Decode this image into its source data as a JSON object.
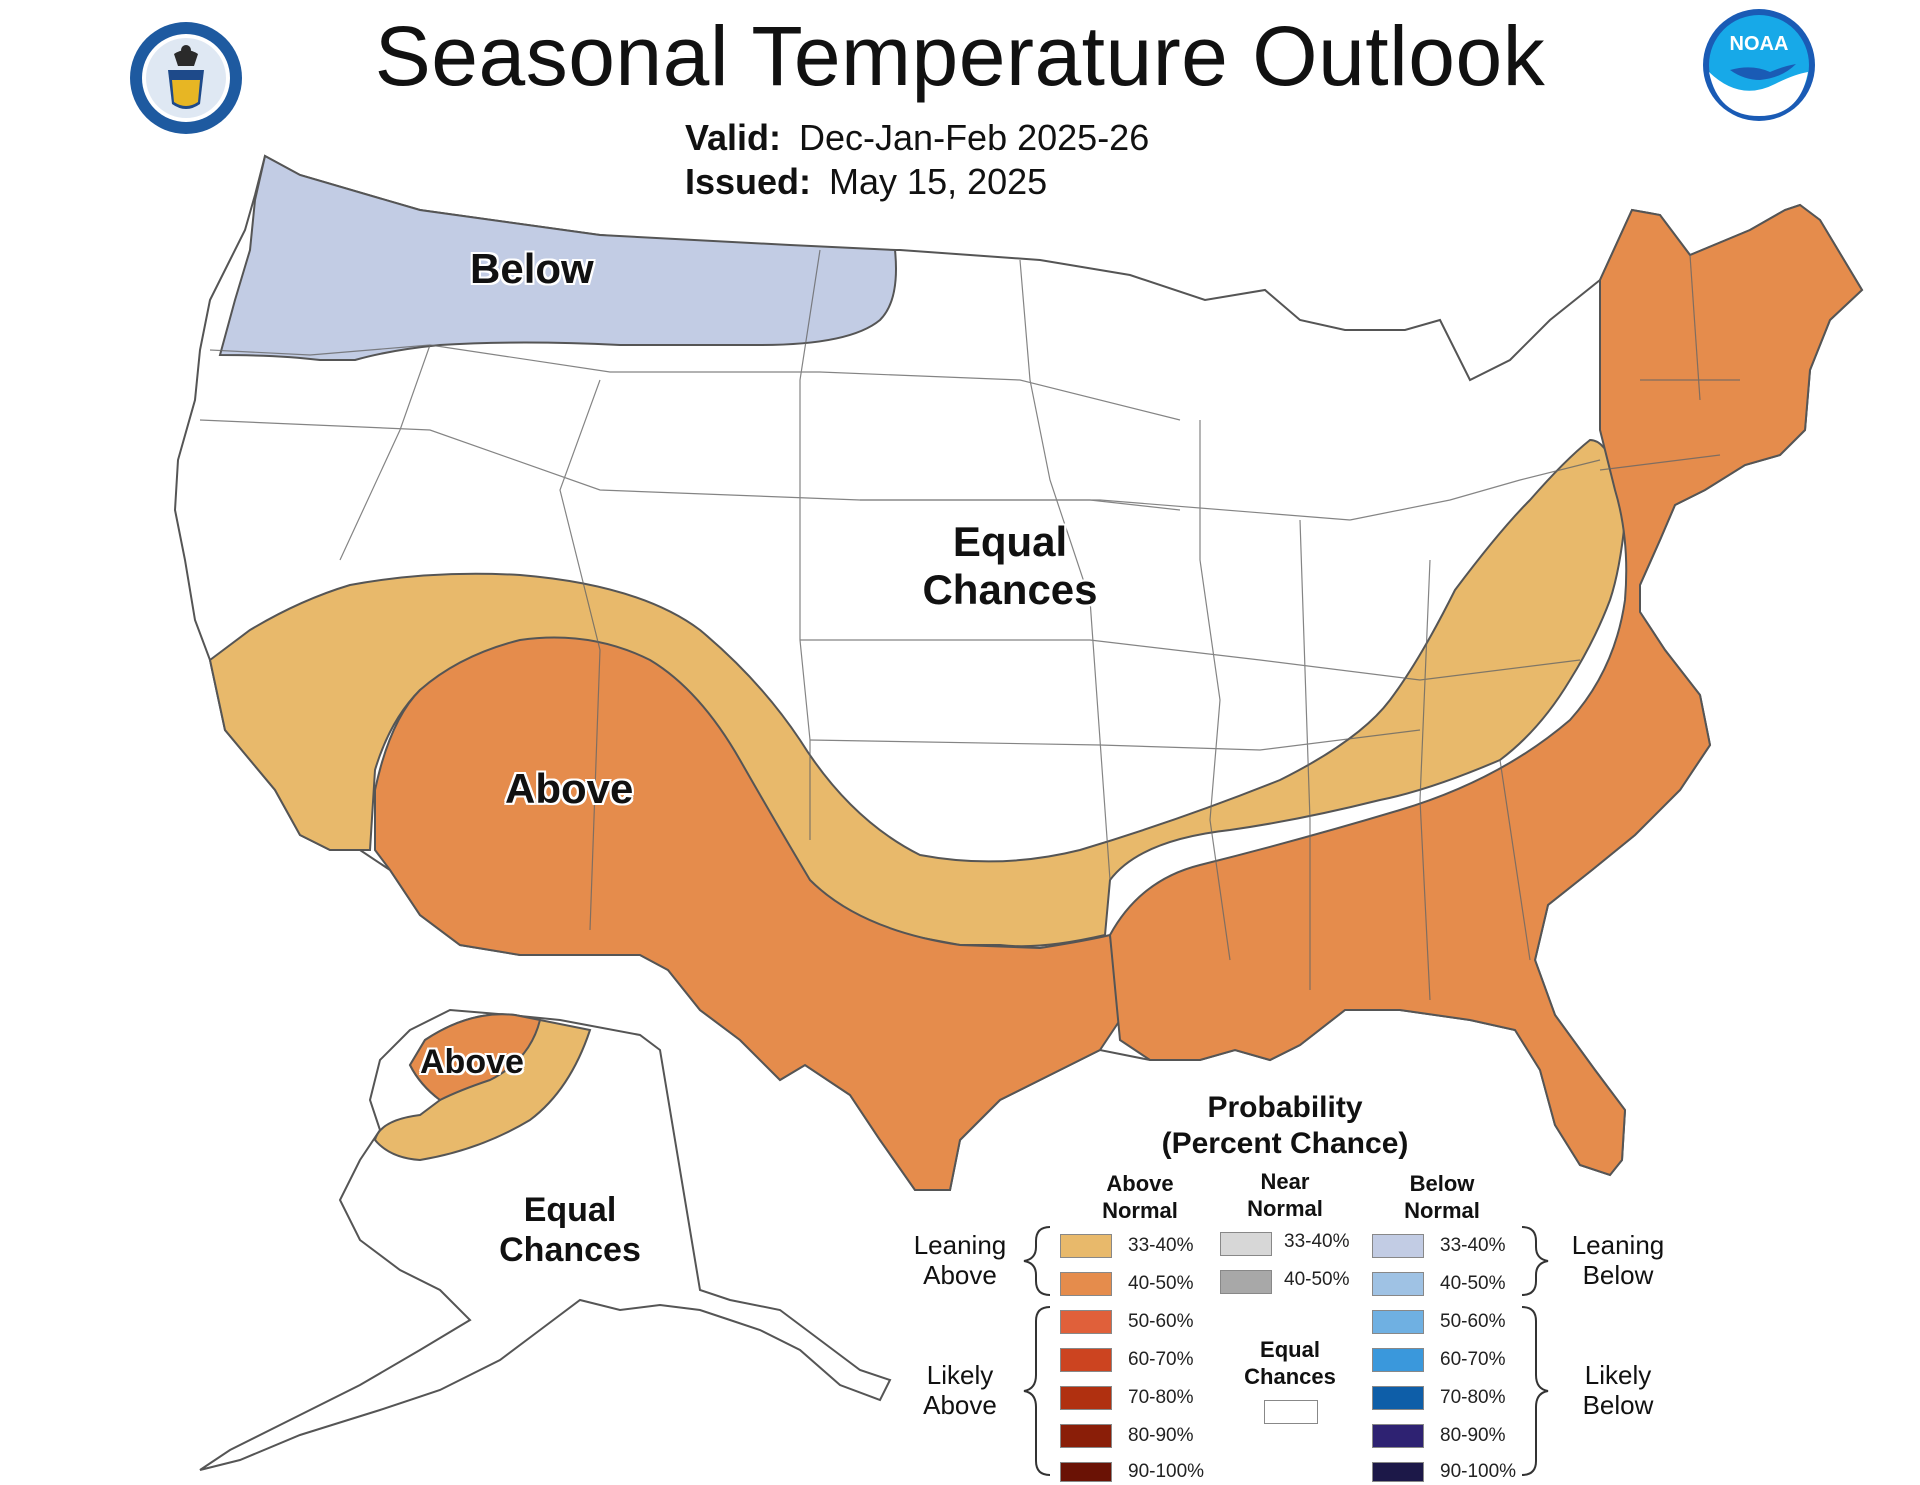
{
  "header": {
    "title": "Seasonal Temperature Outlook",
    "valid_label": "Valid:",
    "valid_value": "Dec-Jan-Feb 2025-26",
    "issued_label": "Issued:",
    "issued_value": "May 15, 2025"
  },
  "logos": {
    "left": "department-of-commerce-seal",
    "right": "noaa-logo",
    "noaa_text": "NOAA"
  },
  "map": {
    "labels": {
      "below": "Below",
      "equal_chances_line1": "Equal",
      "equal_chances_line2": "Chances",
      "above": "Above",
      "alaska_above": "Above",
      "alaska_equal_line1": "Equal",
      "alaska_equal_line2": "Chances"
    },
    "colors": {
      "leaning_above": "#e8b96b",
      "above_40_50": "#e58c4c",
      "leaning_below": "#c2cce4",
      "equal_chances": "#ffffff",
      "outline": "#555555"
    }
  },
  "legend": {
    "title_line1": "Probability",
    "title_line2": "(Percent Chance)",
    "above_head_1": "Above",
    "above_head_2": "Normal",
    "near_head_1": "Near",
    "near_head_2": "Normal",
    "below_head_1": "Below",
    "below_head_2": "Normal",
    "leaning_above_1": "Leaning",
    "leaning_above_2": "Above",
    "likely_above_1": "Likely",
    "likely_above_2": "Above",
    "leaning_below_1": "Leaning",
    "leaning_below_2": "Below",
    "likely_below_1": "Likely",
    "likely_below_2": "Below",
    "equal_chances_1": "Equal",
    "equal_chances_2": "Chances",
    "above": [
      {
        "label": "33-40%",
        "color": "#e8b96b"
      },
      {
        "label": "40-50%",
        "color": "#e58c4c"
      },
      {
        "label": "50-60%",
        "color": "#e0603a"
      },
      {
        "label": "60-70%",
        "color": "#cc4420"
      },
      {
        "label": "70-80%",
        "color": "#b03010"
      },
      {
        "label": "80-90%",
        "color": "#8a1e08"
      },
      {
        "label": "90-100%",
        "color": "#6a1205"
      }
    ],
    "near": [
      {
        "label": "33-40%",
        "color": "#d7d7d7"
      },
      {
        "label": "40-50%",
        "color": "#a8a8a8"
      }
    ],
    "below": [
      {
        "label": "33-40%",
        "color": "#c2cce4"
      },
      {
        "label": "40-50%",
        "color": "#9fc2e4"
      },
      {
        "label": "50-60%",
        "color": "#6fb0e2"
      },
      {
        "label": "60-70%",
        "color": "#3a98dc"
      },
      {
        "label": "70-80%",
        "color": "#0e5ea8"
      },
      {
        "label": "80-90%",
        "color": "#2e2272"
      },
      {
        "label": "90-100%",
        "color": "#1c1848"
      }
    ]
  }
}
